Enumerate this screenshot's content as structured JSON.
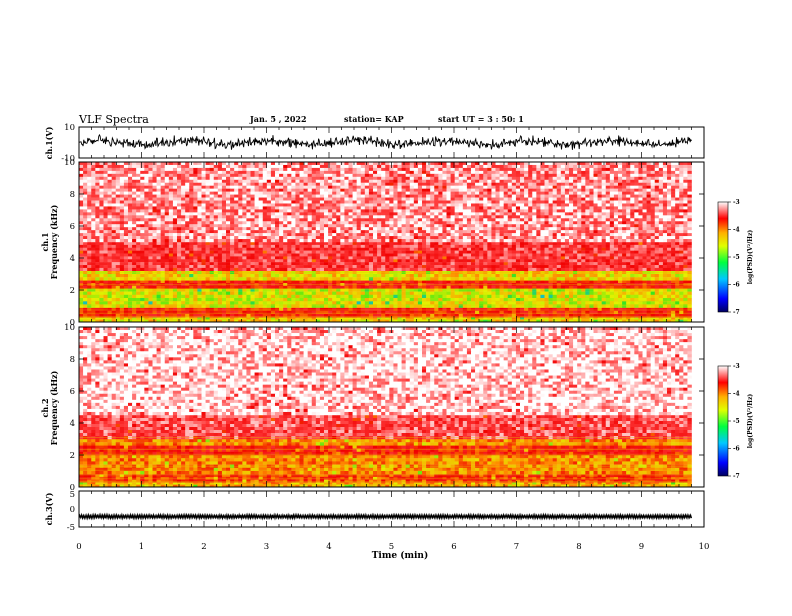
{
  "header": {
    "title": "VLF Spectra",
    "date": "Jan. 5 , 2022",
    "station": "station= KAP",
    "start_time": "start UT =  3 : 50: 1"
  },
  "chart_data": [
    {
      "type": "line",
      "name": "ch1-waveform",
      "ylabel": "ch.1(V)",
      "ylim": [
        -10,
        10
      ],
      "y_ticks": [
        "10",
        "-10"
      ],
      "xlim": [
        0,
        10
      ],
      "data_end_min": 9.8,
      "amplitude_range_v": [
        -5,
        5
      ]
    },
    {
      "type": "heatmap",
      "name": "ch1-spectrogram",
      "ylabel": "ch.1",
      "ylabel2": "Frequency (kHz)",
      "ylim": [
        0,
        10
      ],
      "y_ticks": [
        "0",
        "2",
        "4",
        "6",
        "8",
        "10"
      ],
      "xlim": [
        0,
        10
      ],
      "bands": [
        {
          "f": [
            0,
            0.3
          ],
          "level": 0.55
        },
        {
          "f": [
            0.3,
            0.9
          ],
          "level": 0.3
        },
        {
          "f": [
            0.9,
            2.1
          ],
          "level": 0.6
        },
        {
          "f": [
            2.1,
            2.6
          ],
          "level": 0.3
        },
        {
          "f": [
            2.6,
            3.2
          ],
          "level": 0.55
        },
        {
          "f": [
            3.2,
            5.0
          ],
          "level": 0.18
        },
        {
          "f": [
            5.0,
            10.0
          ],
          "level": 0.08
        }
      ],
      "colorbar": {
        "label": "log(PSD)(V²/Hz)",
        "ticks": [
          "-3",
          "-4",
          "-5",
          "-6",
          "-7"
        ],
        "range": [
          -7,
          -3
        ]
      }
    },
    {
      "type": "heatmap",
      "name": "ch2-spectrogram",
      "ylabel": "ch.2",
      "ylabel2": "Frequency (kHz)",
      "ylim": [
        0,
        10
      ],
      "y_ticks": [
        "0",
        "2",
        "4",
        "6",
        "8",
        "10"
      ],
      "xlim": [
        0,
        10
      ],
      "bands": [
        {
          "f": [
            0,
            0.3
          ],
          "level": 0.5
        },
        {
          "f": [
            0.3,
            0.8
          ],
          "level": 0.35
        },
        {
          "f": [
            0.8,
            2.0
          ],
          "level": 0.45
        },
        {
          "f": [
            2.0,
            2.6
          ],
          "level": 0.3
        },
        {
          "f": [
            2.6,
            3.0
          ],
          "level": 0.45
        },
        {
          "f": [
            3.0,
            4.5
          ],
          "level": 0.15
        },
        {
          "f": [
            4.5,
            10.0
          ],
          "level": 0.03
        }
      ],
      "colorbar": {
        "label": "log(PSD)(V²/Hz)",
        "ticks": [
          "-3",
          "-4",
          "-5",
          "-6",
          "-7"
        ],
        "range": [
          -7,
          -3
        ]
      }
    },
    {
      "type": "line",
      "name": "ch3-waveform",
      "ylabel": "ch.3(V)",
      "ylim": [
        -5,
        5
      ],
      "y_ticks": [
        "5",
        "0",
        "-5"
      ],
      "xlim": [
        0,
        10
      ],
      "data_end_min": 9.8,
      "amplitude_range_v": [
        -2.6,
        -1.6
      ]
    }
  ],
  "x_axis": {
    "label": "Time (min)",
    "ticks": [
      "0",
      "1",
      "2",
      "3",
      "4",
      "5",
      "6",
      "7",
      "8",
      "9",
      "10"
    ]
  },
  "colors": {
    "ink": "#000000",
    "low": "#000080",
    "mid": "#00ff00",
    "high": "#ff0000"
  }
}
